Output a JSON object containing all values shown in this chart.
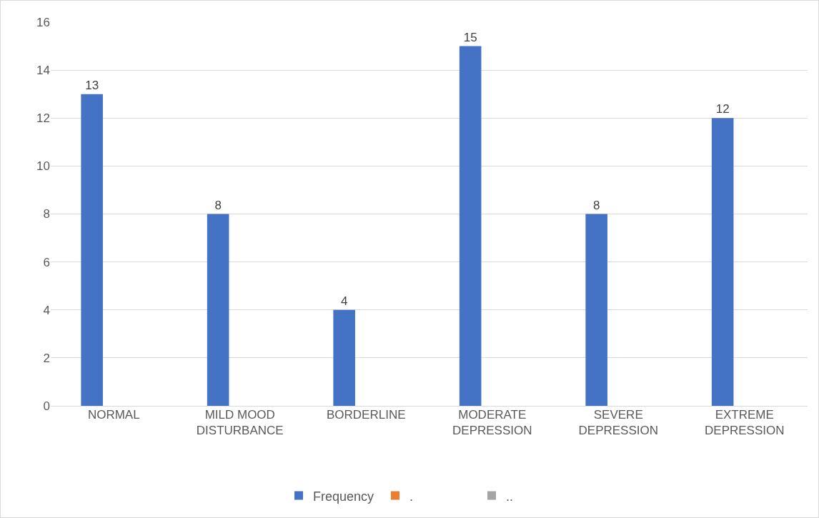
{
  "chart_data": {
    "type": "bar",
    "categories": [
      "NORMAL",
      "MILD MOOD DISTURBANCE",
      "BORDERLINE",
      "MODERATE DEPRESSION",
      "SEVERE DEPRESSION",
      "EXTREME DEPRESSION"
    ],
    "series": [
      {
        "name": "Frequency",
        "color": "#4472c4",
        "values": [
          13,
          8,
          4,
          15,
          8,
          12
        ]
      },
      {
        "name": ".",
        "color": "#ed7d31",
        "values": [
          null,
          null,
          null,
          null,
          null,
          null
        ]
      },
      {
        "name": "..",
        "color": "#a5a5a5",
        "values": [
          null,
          null,
          null,
          null,
          null,
          null
        ]
      }
    ],
    "ylim": [
      0,
      16
    ],
    "yticks": [
      0,
      2,
      4,
      6,
      8,
      10,
      12,
      14,
      16
    ],
    "grid": "y",
    "legend": "bottom",
    "data_labels": true
  }
}
